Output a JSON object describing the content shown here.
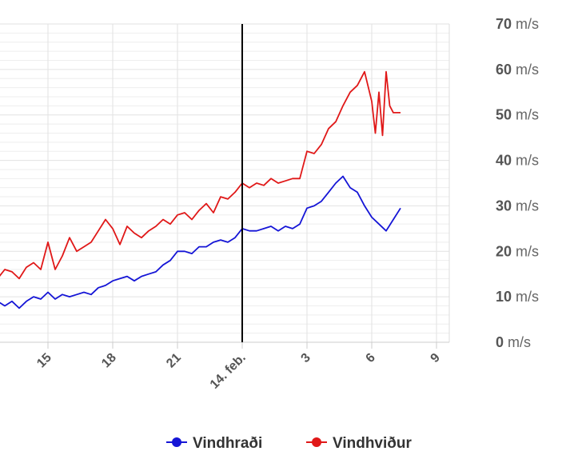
{
  "chart_data": {
    "type": "line",
    "title": "",
    "xlabel": "",
    "ylabel": "",
    "ylim": [
      0,
      70
    ],
    "y_ticks": [
      0,
      10,
      20,
      30,
      40,
      50,
      60,
      70
    ],
    "y_unit": "m/s",
    "grid": true,
    "x_tick_labels": [
      "15",
      "18",
      "21",
      "14. feb.",
      "3",
      "6",
      "9"
    ],
    "x_tick_positions_hours": [
      -216,
      -144,
      -72,
      0,
      72,
      144,
      216
    ],
    "x_range_hours": [
      -288,
      216
    ],
    "now_marker_hours": 0,
    "legend_position": "bottom-center",
    "series": [
      {
        "name": "Vindhraði",
        "color": "#1515d6",
        "x": [
          -288,
          -280,
          -272,
          -264,
          -256,
          -248,
          -240,
          -232,
          -224,
          -216,
          -208,
          -200,
          -192,
          -184,
          -176,
          -168,
          -160,
          -152,
          -144,
          -136,
          -128,
          -120,
          -112,
          -104,
          -96,
          -88,
          -80,
          -72,
          -64,
          -56,
          -48,
          -40,
          -32,
          -24,
          -16,
          -8,
          0,
          8,
          16,
          24,
          32,
          40,
          48,
          56,
          64,
          72,
          80,
          88,
          96,
          104,
          112,
          120,
          128,
          136,
          144,
          152,
          160,
          168,
          176
        ],
        "values": [
          7,
          7.5,
          9,
          8,
          9,
          7.5,
          9,
          10,
          9.5,
          11,
          9.5,
          10.5,
          10,
          10.5,
          11,
          10.5,
          12,
          12.5,
          13.5,
          14,
          14.5,
          13.5,
          14.5,
          15,
          15.5,
          17,
          18,
          20,
          20,
          19.5,
          21,
          21,
          22,
          22.5,
          22,
          23,
          25,
          24.5,
          24.5,
          25,
          25.5,
          24.5,
          25.5,
          25,
          26,
          29.5,
          30,
          31,
          33,
          35,
          36.5,
          34,
          33,
          30,
          27.5,
          26,
          24.5,
          27,
          29.5
        ]
      },
      {
        "name": "Vindhviður",
        "color": "#e01818",
        "x": [
          -288,
          -280,
          -272,
          -264,
          -256,
          -248,
          -240,
          -232,
          -224,
          -216,
          -208,
          -200,
          -192,
          -184,
          -176,
          -168,
          -160,
          -152,
          -144,
          -136,
          -128,
          -120,
          -112,
          -104,
          -96,
          -88,
          -80,
          -72,
          -64,
          -56,
          -48,
          -40,
          -32,
          -24,
          -16,
          -8,
          0,
          8,
          16,
          24,
          32,
          40,
          48,
          56,
          64,
          72,
          80,
          88,
          96,
          104,
          112,
          120,
          128,
          136,
          144,
          148,
          152,
          156,
          160,
          164,
          168,
          172,
          176
        ],
        "values": [
          9.5,
          11.5,
          14,
          16,
          15.5,
          14,
          16.5,
          17.5,
          16,
          22,
          16,
          19,
          23,
          20,
          21,
          22,
          24.5,
          27,
          25,
          21.5,
          25.5,
          24,
          23,
          24.5,
          25.5,
          27,
          26,
          28,
          28.5,
          27,
          29,
          30.5,
          28.5,
          32,
          31.5,
          33,
          35,
          34,
          35,
          34.5,
          36,
          35,
          35.5,
          36,
          36,
          42,
          41.5,
          43.5,
          47,
          48.5,
          52,
          55,
          56.5,
          59.5,
          53,
          46,
          55,
          45.5,
          59.5,
          52,
          50.5,
          50.5,
          50.5
        ]
      }
    ]
  }
}
